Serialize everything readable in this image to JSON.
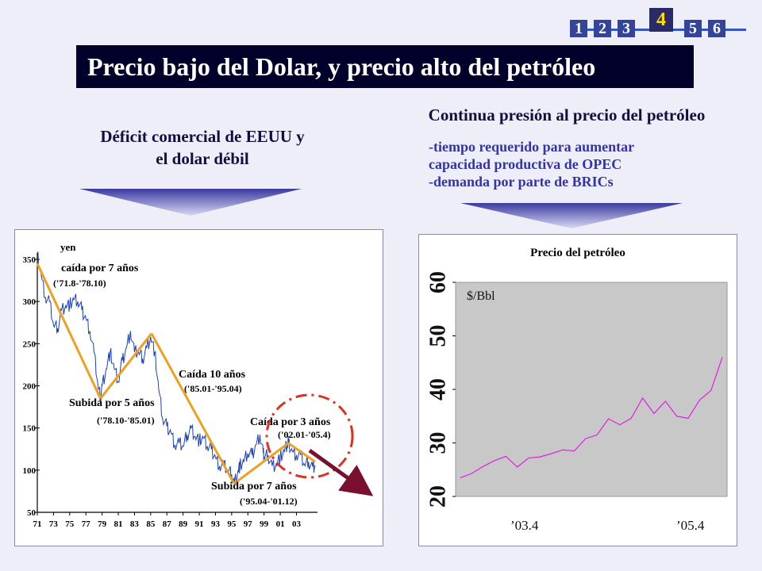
{
  "nav": {
    "items": [
      "1",
      "2",
      "3",
      "4",
      "5",
      "6"
    ],
    "active": "4"
  },
  "title": "Precio bajo del Dolar, y precio alto del petróleo",
  "left": {
    "heading_line1": "Déficit comercial de EEUU y",
    "heading_line2": "el dolar débil",
    "chart": {
      "unit": "yen",
      "annotations": [
        {
          "label": "caída por 7 años",
          "range": "('71.8-'78.10)"
        },
        {
          "label": "Subida por 5 años",
          "range": "('78.10-'85.01)"
        },
        {
          "label": "Caída 10 años",
          "range": "('85.01-'95.04)"
        },
        {
          "label": "Subida por 7 años",
          "range": "('95.04-'01.12)"
        },
        {
          "label": "Caída por 3 años",
          "range": "('02.01-'05.4)"
        }
      ]
    }
  },
  "right": {
    "heading": "Continua presión al precio del petróleo",
    "bullets": [
      "-tiempo requerido para aumentar",
      "capacidad productiva de OPEC",
      "-demanda por parte de BRICs"
    ],
    "chart": {
      "title": "Precio del petróleo",
      "unit": "$/Bbl",
      "x_start": "’03.4",
      "x_end": "’05.4"
    }
  },
  "chart_data": [
    {
      "type": "line",
      "title": "",
      "ylabel": "yen",
      "ylim": [
        50,
        350
      ],
      "y_ticks": [
        50,
        100,
        150,
        200,
        250,
        300,
        350
      ],
      "x_ticks": [
        "71",
        "73",
        "75",
        "77",
        "79",
        "81",
        "83",
        "85",
        "87",
        "89",
        "91",
        "93",
        "95",
        "97",
        "99",
        "01",
        "03"
      ],
      "series": [
        {
          "values": [
            {
              "x": 1971.0,
              "y": 357
            },
            {
              "x": 1971.5,
              "y": 330
            },
            {
              "x": 1972.0,
              "y": 305
            },
            {
              "x": 1972.5,
              "y": 300
            },
            {
              "x": 1973.0,
              "y": 272
            },
            {
              "x": 1973.5,
              "y": 268
            },
            {
              "x": 1974.0,
              "y": 290
            },
            {
              "x": 1974.5,
              "y": 295
            },
            {
              "x": 1975.0,
              "y": 296
            },
            {
              "x": 1975.5,
              "y": 302
            },
            {
              "x": 1976.0,
              "y": 300
            },
            {
              "x": 1976.5,
              "y": 290
            },
            {
              "x": 1977.0,
              "y": 280
            },
            {
              "x": 1977.5,
              "y": 265
            },
            {
              "x": 1978.0,
              "y": 240
            },
            {
              "x": 1978.5,
              "y": 200
            },
            {
              "x": 1978.8,
              "y": 185
            },
            {
              "x": 1979.0,
              "y": 200
            },
            {
              "x": 1979.5,
              "y": 220
            },
            {
              "x": 1980.0,
              "y": 240
            },
            {
              "x": 1980.5,
              "y": 220
            },
            {
              "x": 1981.0,
              "y": 205
            },
            {
              "x": 1981.5,
              "y": 230
            },
            {
              "x": 1982.0,
              "y": 245
            },
            {
              "x": 1982.5,
              "y": 265
            },
            {
              "x": 1983.0,
              "y": 240
            },
            {
              "x": 1983.5,
              "y": 240
            },
            {
              "x": 1984.0,
              "y": 232
            },
            {
              "x": 1984.5,
              "y": 245
            },
            {
              "x": 1985.0,
              "y": 258
            },
            {
              "x": 1985.5,
              "y": 240
            },
            {
              "x": 1986.0,
              "y": 195
            },
            {
              "x": 1986.5,
              "y": 160
            },
            {
              "x": 1987.0,
              "y": 152
            },
            {
              "x": 1987.5,
              "y": 145
            },
            {
              "x": 1988.0,
              "y": 130
            },
            {
              "x": 1988.5,
              "y": 132
            },
            {
              "x": 1989.0,
              "y": 128
            },
            {
              "x": 1989.5,
              "y": 142
            },
            {
              "x": 1990.0,
              "y": 150
            },
            {
              "x": 1990.5,
              "y": 140
            },
            {
              "x": 1991.0,
              "y": 135
            },
            {
              "x": 1991.5,
              "y": 138
            },
            {
              "x": 1992.0,
              "y": 128
            },
            {
              "x": 1992.5,
              "y": 125
            },
            {
              "x": 1993.0,
              "y": 115
            },
            {
              "x": 1993.5,
              "y": 105
            },
            {
              "x": 1994.0,
              "y": 106
            },
            {
              "x": 1994.5,
              "y": 100
            },
            {
              "x": 1995.0,
              "y": 95
            },
            {
              "x": 1995.3,
              "y": 84
            },
            {
              "x": 1995.8,
              "y": 100
            },
            {
              "x": 1996.0,
              "y": 105
            },
            {
              "x": 1996.5,
              "y": 110
            },
            {
              "x": 1997.0,
              "y": 120
            },
            {
              "x": 1997.5,
              "y": 118
            },
            {
              "x": 1998.0,
              "y": 130
            },
            {
              "x": 1998.5,
              "y": 142
            },
            {
              "x": 1998.9,
              "y": 120
            },
            {
              "x": 1999.0,
              "y": 115
            },
            {
              "x": 1999.5,
              "y": 118
            },
            {
              "x": 2000.0,
              "y": 105
            },
            {
              "x": 2000.5,
              "y": 107
            },
            {
              "x": 2001.0,
              "y": 115
            },
            {
              "x": 2001.5,
              "y": 122
            },
            {
              "x": 2001.9,
              "y": 131
            },
            {
              "x": 2002.0,
              "y": 133
            },
            {
              "x": 2002.5,
              "y": 122
            },
            {
              "x": 2003.0,
              "y": 118
            },
            {
              "x": 2003.5,
              "y": 118
            },
            {
              "x": 2004.0,
              "y": 106
            },
            {
              "x": 2004.5,
              "y": 110
            },
            {
              "x": 2005.0,
              "y": 104
            },
            {
              "x": 2005.3,
              "y": 106
            }
          ]
        }
      ],
      "trend_segments": [
        {
          "from": [
            1971.0,
            345
          ],
          "to": [
            1978.8,
            185
          ]
        },
        {
          "from": [
            1978.8,
            185
          ],
          "to": [
            1985.1,
            262
          ]
        },
        {
          "from": [
            1985.1,
            262
          ],
          "to": [
            1995.3,
            84
          ]
        },
        {
          "from": [
            1995.3,
            84
          ],
          "to": [
            2002.0,
            132
          ]
        },
        {
          "from": [
            2002.0,
            132
          ],
          "to": [
            2005.3,
            110
          ]
        }
      ]
    },
    {
      "type": "line",
      "title": "Precio del petróleo",
      "ylabel": "$/Bbl",
      "ylim": [
        20,
        60
      ],
      "y_ticks": [
        20,
        30,
        40,
        50,
        60
      ],
      "x_labels": [
        "’03.4",
        "’05.4"
      ],
      "series": [
        {
          "values": [
            23.5,
            24.3,
            25.6,
            26.7,
            27.5,
            25.5,
            27.2,
            27.4,
            28.0,
            28.7,
            28.5,
            30.8,
            31.5,
            34.5,
            33.4,
            34.6,
            38.4,
            35.5,
            37.8,
            35.0,
            34.6,
            38.0,
            39.8,
            46.0
          ]
        }
      ]
    }
  ]
}
